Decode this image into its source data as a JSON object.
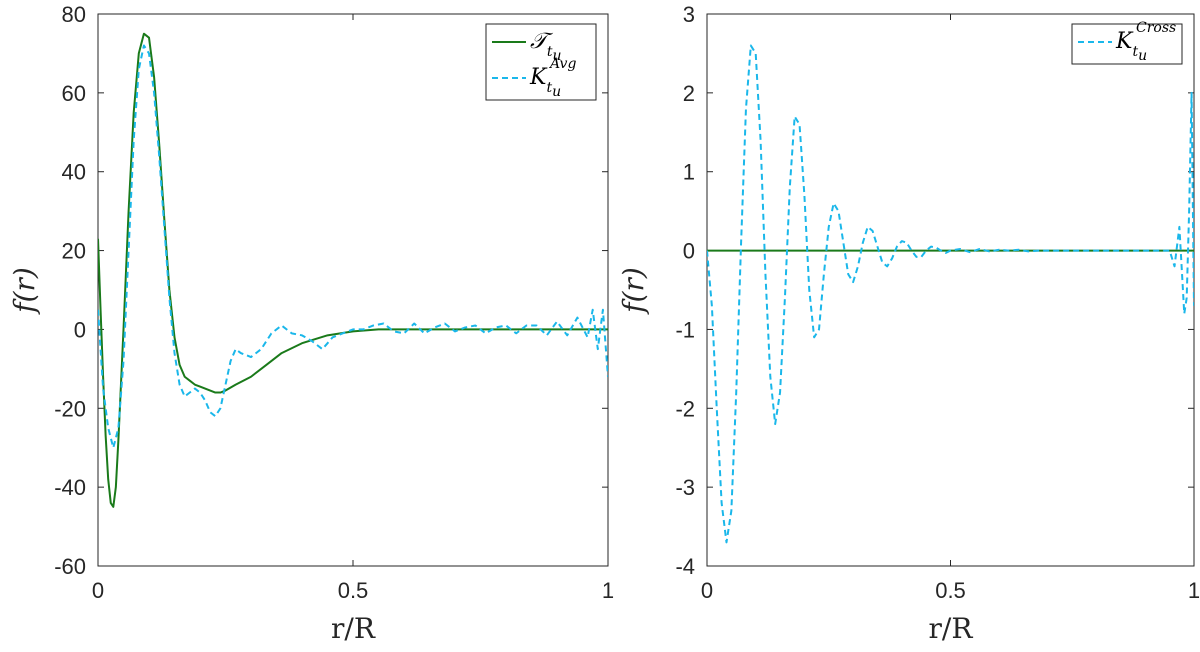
{
  "chart_data": [
    {
      "type": "line",
      "xlabel": "r/R",
      "ylabel": "f(r)",
      "xlim": [
        0,
        1
      ],
      "ylim": [
        -60,
        80
      ],
      "xticks": [
        0,
        0.5,
        1
      ],
      "yticks": [
        -60,
        -40,
        -20,
        0,
        20,
        40,
        60,
        80
      ],
      "xtick_labels": [
        "0",
        "0.5",
        "1"
      ],
      "ytick_labels": [
        "-60",
        "-40",
        "-20",
        "0",
        "20",
        "40",
        "60",
        "80"
      ],
      "grid": false,
      "legend": "top-right",
      "series": [
        {
          "name": "T_{t_u}",
          "legend_main": "𝒯",
          "legend_sub": "t",
          "legend_subsub": "u",
          "legend_sup": "",
          "color": "#1a7a1a",
          "style": "solid",
          "x": [
            0,
            0.005,
            0.01,
            0.015,
            0.02,
            0.025,
            0.03,
            0.035,
            0.04,
            0.05,
            0.06,
            0.07,
            0.08,
            0.09,
            0.1,
            0.11,
            0.12,
            0.13,
            0.14,
            0.15,
            0.16,
            0.17,
            0.18,
            0.19,
            0.2,
            0.21,
            0.22,
            0.23,
            0.24,
            0.25,
            0.27,
            0.3,
            0.33,
            0.36,
            0.4,
            0.45,
            0.5,
            0.55,
            0.6,
            0.7,
            0.8,
            0.9,
            1.0
          ],
          "y": [
            23,
            5,
            -12,
            -27,
            -38,
            -44,
            -45,
            -40,
            -28,
            0,
            30,
            55,
            70,
            75,
            74,
            64,
            47,
            28,
            10,
            -2,
            -9,
            -12,
            -13,
            -14,
            -14.5,
            -15,
            -15.5,
            -16,
            -16,
            -15.5,
            -14,
            -12,
            -9,
            -6,
            -3.5,
            -1.5,
            -0.5,
            0,
            0,
            0,
            0,
            0,
            0
          ]
        },
        {
          "name": "K_{t_u}^{Avg}",
          "legend_main": "K",
          "legend_sub": "t",
          "legend_subsub": "u",
          "legend_sup": "Avg",
          "color": "#1ab7ea",
          "style": "dashed",
          "x": [
            0,
            0.01,
            0.02,
            0.03,
            0.04,
            0.05,
            0.06,
            0.07,
            0.08,
            0.09,
            0.1,
            0.11,
            0.12,
            0.13,
            0.14,
            0.15,
            0.16,
            0.17,
            0.18,
            0.19,
            0.2,
            0.21,
            0.22,
            0.23,
            0.24,
            0.25,
            0.26,
            0.27,
            0.28,
            0.3,
            0.32,
            0.34,
            0.36,
            0.38,
            0.4,
            0.42,
            0.44,
            0.46,
            0.48,
            0.5,
            0.52,
            0.54,
            0.56,
            0.58,
            0.6,
            0.62,
            0.64,
            0.66,
            0.68,
            0.7,
            0.72,
            0.74,
            0.76,
            0.78,
            0.8,
            0.82,
            0.84,
            0.86,
            0.88,
            0.9,
            0.92,
            0.94,
            0.96,
            0.97,
            0.98,
            0.99,
            1.0
          ],
          "y": [
            5,
            -15,
            -25,
            -30,
            -25,
            -8,
            20,
            48,
            66,
            72,
            70,
            60,
            44,
            26,
            8,
            -6,
            -14,
            -17,
            -16,
            -15,
            -16,
            -18,
            -21,
            -22,
            -20,
            -14,
            -8,
            -5,
            -6,
            -7,
            -5,
            -1,
            1,
            -1,
            -1.5,
            -3,
            -5,
            -2,
            -1,
            0,
            0,
            1,
            1.5,
            -0.5,
            -1,
            1.5,
            -1,
            0.5,
            1.5,
            -0.5,
            0.5,
            1,
            -1,
            0.5,
            1,
            -1,
            1,
            1,
            -1.5,
            2,
            -1.5,
            3,
            -2,
            5,
            -5,
            5,
            -12
          ]
        }
      ]
    },
    {
      "type": "line",
      "xlabel": "r/R",
      "ylabel": "f(r)",
      "xlim": [
        0,
        1
      ],
      "ylim": [
        -4,
        3
      ],
      "xticks": [
        0,
        0.5,
        1
      ],
      "yticks": [
        -4,
        -3,
        -2,
        -1,
        0,
        1,
        2,
        3
      ],
      "xtick_labels": [
        "0",
        "0.5",
        "1"
      ],
      "ytick_labels": [
        "-4",
        "-3",
        "-2",
        "-1",
        "0",
        "1",
        "2",
        "3"
      ],
      "grid": false,
      "legend": "top-right",
      "series": [
        {
          "name": "",
          "legend_main": "",
          "legend_sub": "",
          "legend_subsub": "",
          "legend_sup": "",
          "color": "#1a7a1a",
          "style": "solid",
          "show_in_legend": false,
          "x": [
            0,
            1.0
          ],
          "y": [
            0,
            0
          ]
        },
        {
          "name": "K_{t_u}^{Cross}",
          "legend_main": "K",
          "legend_sub": "t",
          "legend_subsub": "u",
          "legend_sup": "Cross",
          "color": "#1ab7ea",
          "style": "dashed",
          "x": [
            0,
            0.01,
            0.02,
            0.03,
            0.04,
            0.05,
            0.06,
            0.07,
            0.08,
            0.09,
            0.1,
            0.11,
            0.12,
            0.13,
            0.14,
            0.15,
            0.16,
            0.17,
            0.18,
            0.19,
            0.2,
            0.21,
            0.22,
            0.23,
            0.24,
            0.25,
            0.26,
            0.27,
            0.28,
            0.29,
            0.3,
            0.31,
            0.32,
            0.33,
            0.34,
            0.35,
            0.36,
            0.37,
            0.38,
            0.39,
            0.4,
            0.41,
            0.42,
            0.43,
            0.44,
            0.45,
            0.46,
            0.47,
            0.48,
            0.49,
            0.5,
            0.52,
            0.54,
            0.56,
            0.58,
            0.6,
            0.62,
            0.64,
            0.66,
            0.68,
            0.7,
            0.75,
            0.8,
            0.85,
            0.9,
            0.95,
            0.96,
            0.97,
            0.98,
            0.985,
            0.99,
            0.995,
            1.0
          ],
          "y": [
            0,
            -0.7,
            -2.0,
            -3.2,
            -3.7,
            -3.3,
            -1.8,
            0.1,
            1.8,
            2.6,
            2.5,
            1.4,
            -0.3,
            -1.6,
            -2.2,
            -1.8,
            -0.6,
            0.8,
            1.7,
            1.6,
            0.7,
            -0.5,
            -1.1,
            -1.0,
            -0.3,
            0.3,
            0.6,
            0.5,
            0.1,
            -0.3,
            -0.4,
            -0.2,
            0.1,
            0.3,
            0.25,
            0.05,
            -0.15,
            -0.2,
            -0.1,
            0.05,
            0.12,
            0.1,
            0.0,
            -0.08,
            -0.08,
            0.0,
            0.05,
            0.04,
            0.0,
            -0.03,
            0.0,
            0.02,
            -0.02,
            0.02,
            -0.01,
            0.01,
            0.0,
            0.01,
            -0.01,
            0.0,
            0.0,
            0.0,
            0.0,
            0.0,
            0.0,
            0.0,
            -0.2,
            0.3,
            -0.8,
            -0.6,
            0.5,
            2.0,
            -0.7
          ]
        }
      ]
    }
  ]
}
